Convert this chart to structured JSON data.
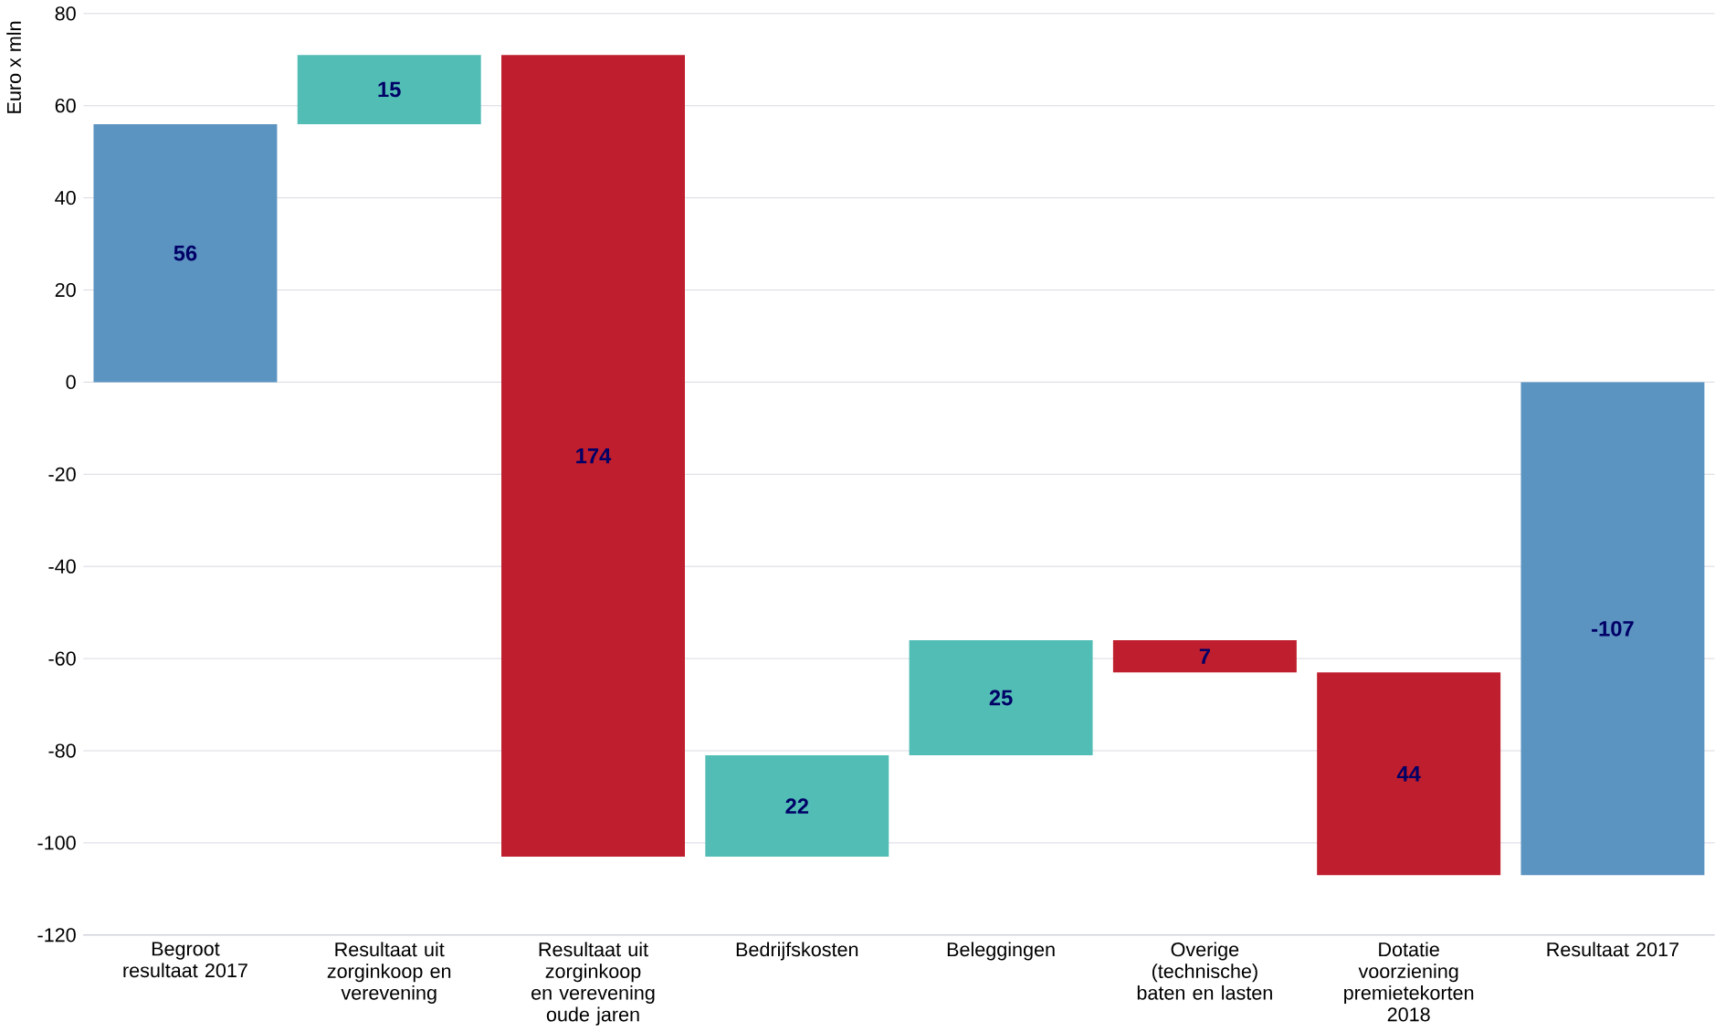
{
  "chart_data": {
    "type": "bar",
    "ylabel": "Euro x mln",
    "categories": [
      "Begroot resultaat 2017",
      "Resultaat uit zorginkoop en verevening",
      "Resultaat uit zorginkoop en verevening oude jaren",
      "Bedrijfskosten",
      "Beleggingen",
      "Overige (technische) baten en lasten",
      "Dotatie voorziening premietekorten 2018",
      "Resultaat 2017"
    ],
    "values": [
      56,
      15,
      -174,
      22,
      25,
      -7,
      -44,
      -107
    ],
    "base": [
      0,
      56,
      71,
      -103,
      -81,
      -56,
      -63,
      0
    ],
    "colors": [
      "#5b93c1",
      "#52bdb5",
      "#be1e2d",
      "#52bdb5",
      "#52bdb5",
      "#be1e2d",
      "#be1e2d",
      "#5b93c1"
    ],
    "value_labels": [
      "56",
      "15",
      "174",
      "22",
      "25",
      "7",
      "44",
      "-107"
    ],
    "ylim": [
      -120,
      80
    ],
    "yticks": [
      -120,
      -100,
      -80,
      -60,
      -40,
      -20,
      0,
      20,
      40,
      60,
      80
    ],
    "grid": "y"
  }
}
